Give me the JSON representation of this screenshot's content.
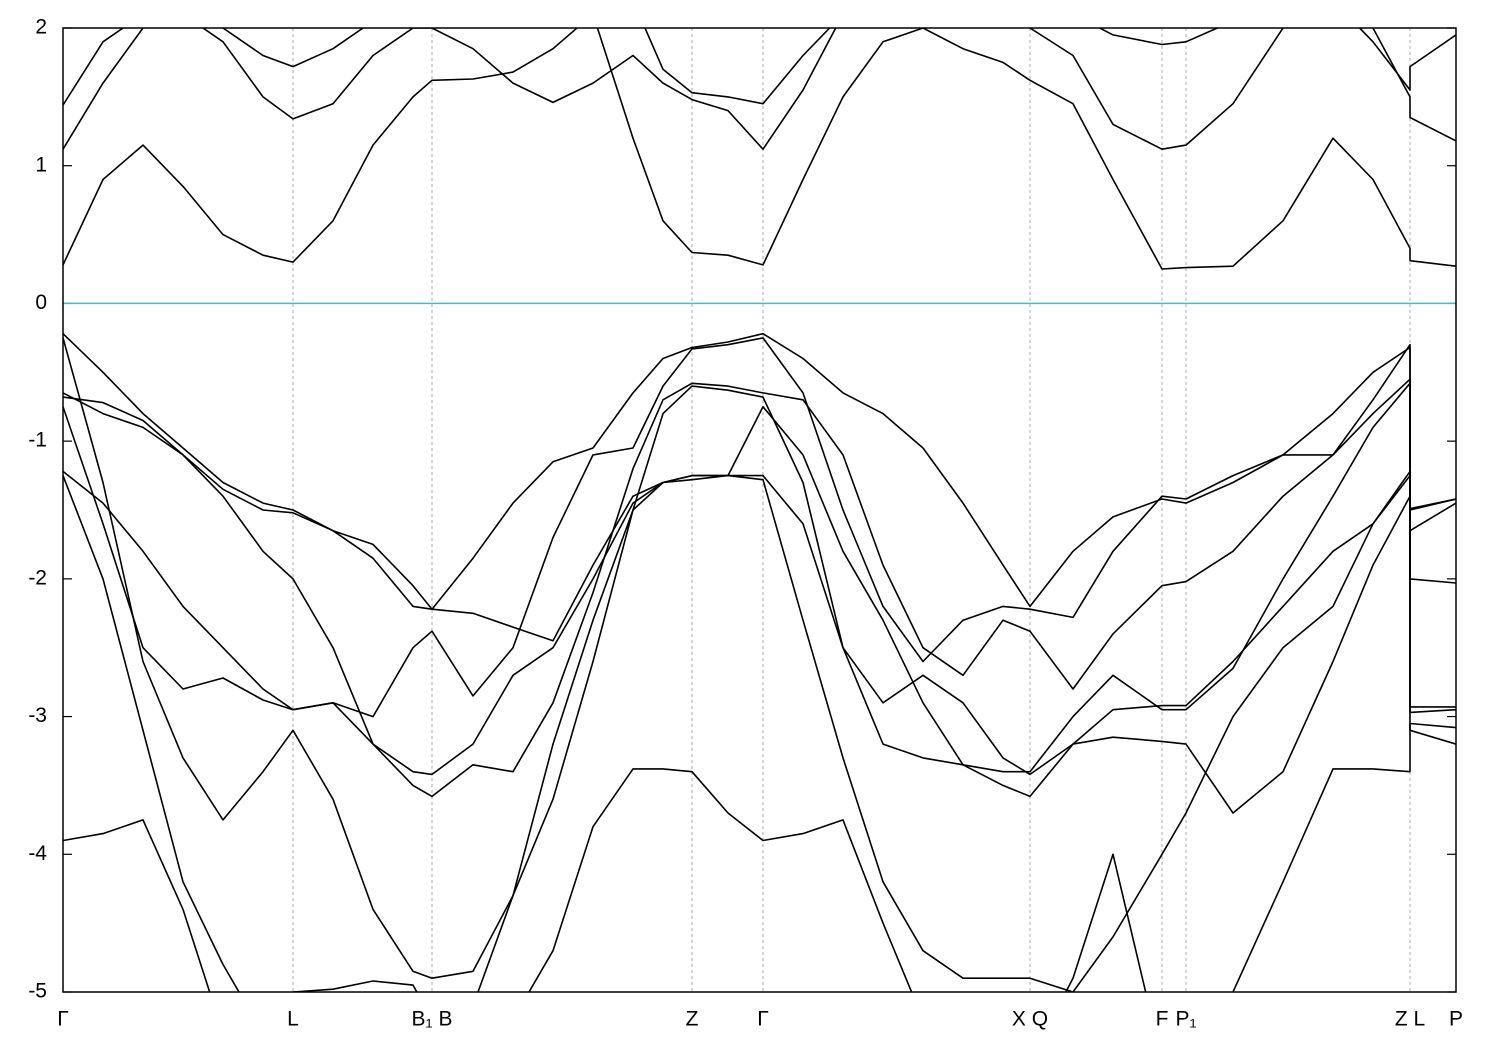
{
  "chart_data": {
    "type": "line",
    "x": [
      0,
      40,
      80,
      120,
      160,
      200,
      230,
      270,
      310,
      350,
      369,
      410,
      450,
      490,
      530,
      570,
      600,
      629,
      665,
      700,
      740,
      780,
      820,
      860,
      900,
      940,
      967,
      1010,
      1050,
      1099,
      1123,
      1170,
      1220,
      1270,
      1310,
      1347,
      1347,
      1393
    ],
    "xlim": [
      0,
      1393
    ],
    "xticks": [
      {
        "value": 0,
        "label": "Γ"
      },
      {
        "value": 230,
        "label": "L"
      },
      {
        "value": 369,
        "label": "B₁ B"
      },
      {
        "value": 629,
        "label": "Z"
      },
      {
        "value": 700,
        "label": "Γ"
      },
      {
        "value": 967,
        "label": "X Q"
      },
      {
        "value": 1099,
        "label": "F"
      },
      {
        "value": 1123,
        "label": "P₁"
      },
      {
        "value": 1347,
        "label": "Z L"
      },
      {
        "value": 1393,
        "label": "P"
      }
    ],
    "ylim": [
      -5,
      2
    ],
    "yticks": [
      -5,
      -4,
      -3,
      -2,
      -1,
      0,
      1,
      2
    ],
    "hline": {
      "value": 0,
      "color": "#4db8c8"
    },
    "grid": true,
    "series": [
      {
        "color": "#000000",
        "values": [
          0.28,
          0.9,
          1.15,
          0.85,
          0.5,
          0.35,
          0.3,
          0.6,
          1.15,
          1.5,
          1.62,
          1.63,
          1.68,
          1.85,
          2.1,
          1.2,
          0.6,
          0.37,
          0.35,
          0.28,
          0.9,
          1.5,
          1.9,
          2.0,
          1.85,
          1.75,
          1.62,
          1.45,
          0.9,
          0.25,
          0.26,
          0.27,
          0.6,
          1.2,
          0.9,
          0.4,
          0.31,
          0.27
        ]
      },
      {
        "color": "#000000",
        "values": [
          1.12,
          1.6,
          2.0,
          2.1,
          1.9,
          1.5,
          1.34,
          1.45,
          1.8,
          2.0,
          2.0,
          1.85,
          1.6,
          1.46,
          1.6,
          1.8,
          1.6,
          1.48,
          1.4,
          1.12,
          1.55,
          2.1,
          2.2,
          2.2,
          2.2,
          2.1,
          2.0,
          1.8,
          1.3,
          1.12,
          1.15,
          1.45,
          2.0,
          2.2,
          2.0,
          1.5,
          1.35,
          1.18
        ]
      },
      {
        "color": "#000000",
        "values": [
          1.44,
          1.9,
          2.1,
          2.1,
          2.0,
          1.8,
          1.72,
          1.85,
          2.05,
          2.2,
          2.2,
          2.2,
          2.2,
          2.2,
          2.2,
          2.2,
          1.7,
          1.53,
          1.5,
          1.45,
          1.8,
          2.1,
          2.2,
          2.2,
          2.2,
          2.2,
          2.1,
          2.1,
          1.95,
          1.88,
          1.9,
          2.05,
          2.2,
          2.2,
          1.9,
          1.55,
          1.72,
          1.95
        ]
      },
      {
        "color": "#000000",
        "values": [
          -0.22,
          -0.5,
          -0.8,
          -1.05,
          -1.3,
          -1.45,
          -1.5,
          -1.65,
          -1.75,
          -2.05,
          -2.22,
          -1.85,
          -1.45,
          -1.15,
          -1.05,
          -0.65,
          -0.4,
          -0.32,
          -0.28,
          -0.22,
          -0.4,
          -0.65,
          -0.8,
          -1.05,
          -1.45,
          -1.9,
          -2.2,
          -1.8,
          -1.55,
          -1.42,
          -1.45,
          -1.3,
          -1.1,
          -0.8,
          -0.5,
          -0.32,
          -1.49,
          -1.42
        ]
      },
      {
        "color": "#000000",
        "values": [
          -0.25,
          -1.3,
          -2.6,
          -3.3,
          -3.75,
          -3.4,
          -3.1,
          -3.6,
          -4.4,
          -4.85,
          -4.9,
          -4.85,
          -4.3,
          -3.6,
          -2.6,
          -1.5,
          -0.8,
          -0.6,
          -0.63,
          -0.68,
          -1.3,
          -2.5,
          -3.2,
          -3.3,
          -3.35,
          -3.4,
          -3.4,
          -3.0,
          -2.7,
          -2.95,
          -2.95,
          -2.65,
          -2.0,
          -1.4,
          -0.9,
          -0.58,
          -2.97,
          -2.95
        ]
      },
      {
        "color": "#000000",
        "values": [
          -0.65,
          -0.8,
          -0.9,
          -1.1,
          -1.4,
          -1.8,
          -2.0,
          -2.5,
          -3.2,
          -3.5,
          -3.58,
          -3.35,
          -3.4,
          -2.9,
          -2.1,
          -1.2,
          -0.7,
          -0.58,
          -0.6,
          -0.65,
          -0.7,
          -1.1,
          -1.9,
          -2.5,
          -2.7,
          -2.3,
          -2.38,
          -2.8,
          -2.4,
          -2.05,
          -2.02,
          -1.8,
          -1.4,
          -1.1,
          -0.8,
          -0.55,
          -2.0,
          -2.03
        ]
      },
      {
        "color": "#000000",
        "values": [
          -0.68,
          -0.72,
          -0.85,
          -1.1,
          -1.35,
          -1.5,
          -1.52,
          -1.65,
          -1.85,
          -2.2,
          -2.22,
          -2.25,
          -2.35,
          -2.45,
          -1.9,
          -1.4,
          -1.3,
          -1.25,
          -1.25,
          -0.75,
          -1.1,
          -1.8,
          -2.3,
          -2.9,
          -3.35,
          -3.5,
          -3.58,
          -3.2,
          -3.15,
          -3.18,
          -3.2,
          -3.7,
          -3.4,
          -2.6,
          -1.9,
          -1.4,
          -3.1,
          -3.2
        ]
      },
      {
        "color": "#000000",
        "values": [
          -0.75,
          -1.6,
          -2.5,
          -2.8,
          -2.72,
          -2.88,
          -2.95,
          -2.9,
          -3.2,
          -3.4,
          -3.42,
          -3.2,
          -2.7,
          -2.5,
          -2.0,
          -1.45,
          -1.3,
          -1.28,
          -1.25,
          -1.25,
          -1.6,
          -2.5,
          -2.9,
          -2.7,
          -2.9,
          -3.3,
          -3.42,
          -3.2,
          -2.95,
          -2.92,
          -2.92,
          -2.6,
          -2.2,
          -1.8,
          -1.6,
          -1.25,
          -2.93,
          -2.93
        ]
      },
      {
        "color": "#000000",
        "values": [
          -1.22,
          -1.45,
          -1.8,
          -2.2,
          -2.5,
          -2.8,
          -2.95,
          -2.9,
          -3.0,
          -2.5,
          -2.38,
          -2.85,
          -2.5,
          -1.7,
          -1.1,
          -1.05,
          -0.6,
          -0.33,
          -0.3,
          -0.25,
          -0.65,
          -1.5,
          -2.2,
          -2.6,
          -2.3,
          -2.2,
          -2.22,
          -2.28,
          -1.8,
          -1.4,
          -1.42,
          -1.25,
          -1.1,
          -1.1,
          -0.7,
          -0.3,
          -1.65,
          -1.45
        ]
      },
      {
        "color": "#000000",
        "values": [
          -1.25,
          -2.0,
          -3.1,
          -4.2,
          -4.8,
          -5.3,
          -5.0,
          -4.98,
          -4.92,
          -4.95,
          -5.2,
          -5.1,
          -4.3,
          -3.2,
          -2.3,
          -1.5,
          -1.3,
          -1.25,
          -1.25,
          -1.28,
          -2.3,
          -3.3,
          -4.2,
          -4.7,
          -4.9,
          -4.9,
          -4.9,
          -5.0,
          -4.6,
          -4.0,
          -3.7,
          -3.0,
          -2.5,
          -2.2,
          -1.6,
          -1.22,
          -1.5,
          -1.42
        ]
      },
      {
        "color": "#000000",
        "values": [
          -3.9,
          -3.85,
          -3.75,
          -4.4,
          -5.3,
          -5.5,
          -5.5,
          -5.5,
          -5.5,
          -5.5,
          -5.5,
          -5.5,
          -5.2,
          -4.7,
          -3.8,
          -3.38,
          -3.38,
          -3.4,
          -3.7,
          -3.9,
          -3.85,
          -3.75,
          -4.5,
          -5.2,
          -5.5,
          -5.5,
          -5.5,
          -4.9,
          -4.0,
          -5.5,
          -5.3,
          -5.0,
          -4.2,
          -3.38,
          -3.38,
          -3.4,
          -3.05,
          -3.08
        ]
      }
    ]
  }
}
